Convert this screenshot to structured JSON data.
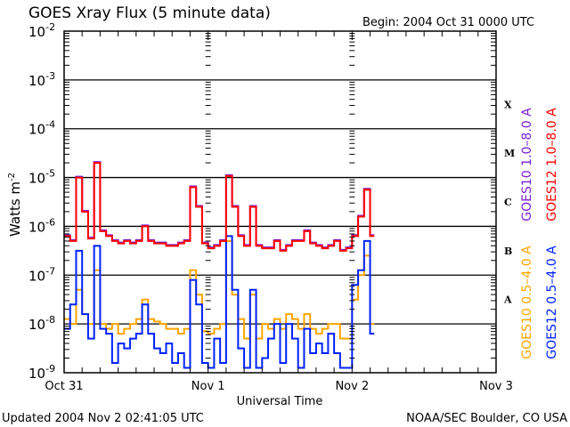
{
  "chart_data": {
    "type": "line",
    "title": "GOES Xray Flux (5 minute data)",
    "begin_label": "Begin:  2004 Oct 31 0000 UTC",
    "xlabel": "Universal Time",
    "ylabel": "Watts m",
    "ylabel_sup": "-2",
    "yscale": "log",
    "ylim_exp": [
      -9,
      -2
    ],
    "ytick_exponents": [
      "-2",
      "-3",
      "-4",
      "-5",
      "-6",
      "-7",
      "-8",
      "-9"
    ],
    "xlim_hours": [
      0,
      72
    ],
    "xticks": [
      {
        "label": "Oct 31",
        "hour": 0
      },
      {
        "label": "Nov 1",
        "hour": 24
      },
      {
        "label": "Nov 2",
        "hour": 48
      },
      {
        "label": "Nov 3",
        "hour": 72
      }
    ],
    "flare_classes": [
      {
        "label": "X",
        "exp": -3.5
      },
      {
        "label": "M",
        "exp": -4.5
      },
      {
        "label": "C",
        "exp": -5.5
      },
      {
        "label": "B",
        "exp": -6.5
      },
      {
        "label": "A",
        "exp": -7.5
      }
    ],
    "x_hours_step": 1,
    "series": [
      {
        "name": "GOES10 1.0-8.0 A",
        "legend": "GOES10 1.0–8.0 A",
        "color": "#7a1fd6",
        "values": [
          -6.2,
          -6.3,
          -5.0,
          -5.7,
          -6.25,
          -4.7,
          -6.1,
          -6.2,
          -6.3,
          -6.35,
          -6.3,
          -6.35,
          -6.3,
          -6.0,
          -6.3,
          -6.35,
          -6.35,
          -6.4,
          -6.4,
          -6.35,
          -6.3,
          -5.2,
          -5.6,
          -6.35,
          -6.45,
          -6.4,
          -6.3,
          -4.97,
          -5.6,
          -6.2,
          -6.4,
          -5.6,
          -6.4,
          -6.45,
          -6.45,
          -6.3,
          -6.5,
          -6.4,
          -6.3,
          -6.3,
          -6.1,
          -6.35,
          -6.4,
          -6.45,
          -6.4,
          -6.3,
          -6.5,
          -6.45,
          -6.2,
          -5.8,
          -5.25,
          -6.2
        ]
      },
      {
        "name": "GOES12 1.0-8.0 A",
        "legend": "GOES12 1.0–8.0 A",
        "color": "#ff0000",
        "values": [
          -6.2,
          -6.3,
          -5.0,
          -5.7,
          -6.25,
          -4.7,
          -6.1,
          -6.2,
          -6.3,
          -6.35,
          -6.3,
          -6.35,
          -6.3,
          -6.0,
          -6.3,
          -6.35,
          -6.35,
          -6.4,
          -6.4,
          -6.35,
          -6.3,
          -5.2,
          -5.6,
          -6.35,
          -6.45,
          -6.4,
          -6.3,
          -4.97,
          -5.6,
          -6.2,
          -6.4,
          -5.6,
          -6.4,
          -6.45,
          -6.45,
          -6.3,
          -6.5,
          -6.4,
          -6.3,
          -6.3,
          -6.1,
          -6.35,
          -6.4,
          -6.45,
          -6.4,
          -6.3,
          -6.5,
          -6.45,
          -6.2,
          -5.8,
          -5.25,
          -6.2
        ]
      },
      {
        "name": "GOES10 0.5-4.0 A",
        "legend": "GOES10 0.5–4.0 A",
        "color": "#ffa500",
        "values": [
          -7.9,
          -8.0,
          -7.3,
          -7.8,
          -8.0,
          -6.9,
          -8.0,
          -8.1,
          -8.0,
          -8.2,
          -8.1,
          -8.0,
          -7.9,
          -7.5,
          -7.9,
          -7.95,
          -8.0,
          -8.1,
          -8.1,
          -8.2,
          -8.1,
          -6.9,
          -7.4,
          -8.15,
          -8.2,
          -8.1,
          -8.0,
          -6.3,
          -7.4,
          -7.9,
          -8.3,
          -7.4,
          -8.3,
          -8.0,
          -8.1,
          -7.9,
          -8.1,
          -7.8,
          -7.9,
          -8.1,
          -7.8,
          -8.1,
          -8.2,
          -8.1,
          -8.0,
          -8.0,
          -8.3,
          -8.3,
          -7.5,
          -7.0,
          -6.6,
          -8.0
        ]
      },
      {
        "name": "GOES12 0.5-4.0 A",
        "legend": "GOES12 0.5–4.0 A",
        "color": "#0022ff",
        "values": [
          -8.1,
          -7.6,
          -6.5,
          -7.8,
          -8.3,
          -6.4,
          -8.1,
          -8.2,
          -8.8,
          -8.4,
          -8.5,
          -8.3,
          -8.2,
          -7.6,
          -8.2,
          -8.5,
          -8.6,
          -8.4,
          -8.8,
          -8.6,
          -8.9,
          -7.1,
          -7.6,
          -8.8,
          -8.9,
          -8.3,
          -8.8,
          -6.2,
          -7.3,
          -8.5,
          -8.9,
          -7.3,
          -8.9,
          -8.7,
          -8.3,
          -8.0,
          -8.8,
          -8.0,
          -8.3,
          -8.9,
          -8.1,
          -8.6,
          -8.4,
          -8.6,
          -8.2,
          -8.6,
          -8.9,
          -8.9,
          -7.2,
          -6.9,
          -6.3,
          -8.2
        ]
      }
    ]
  },
  "footer": {
    "updated": "Updated 2004 Nov  2 02:41:05 UTC",
    "source": "NOAA/SEC Boulder, CO USA"
  }
}
